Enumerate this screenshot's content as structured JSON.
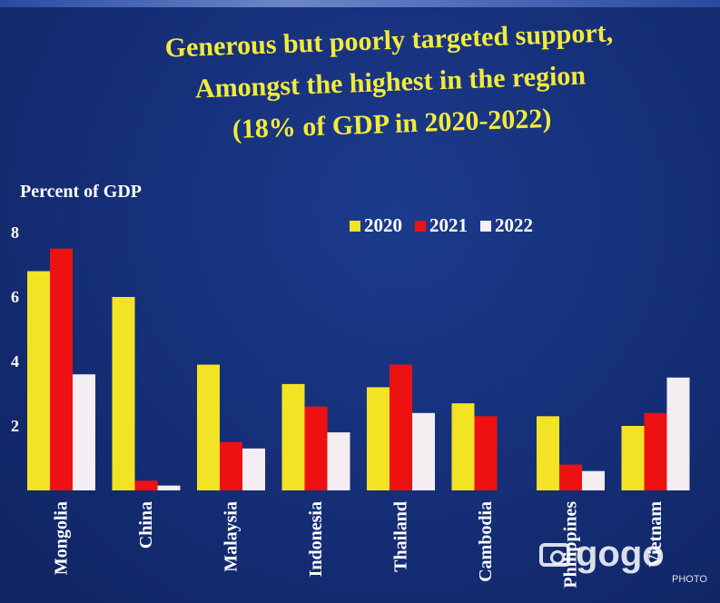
{
  "title_lines": [
    "Generous but poorly targeted support,",
    "Amongst the highest in the region",
    "(18% of GDP in 2020-2022)"
  ],
  "watermark": {
    "logo_text": "gogo",
    "sub_text": "PHOTO"
  },
  "chart_data": {
    "type": "bar",
    "title": "Generous but poorly targeted support, Amongst the highest in the region (18% of GDP in 2020-2022)",
    "ylabel": "Percent of GDP",
    "xlabel": "",
    "ylim": [
      0,
      8
    ],
    "yticks": [
      "8",
      "6",
      "4",
      "2"
    ],
    "categories": [
      "Mongolia",
      "China",
      "Malaysia",
      "Indonesia",
      "Thailand",
      "Cambodia",
      "Philippines",
      "Vietnam"
    ],
    "series": [
      {
        "name": "2020",
        "color": "#f2e424",
        "values": [
          6.8,
          6.0,
          3.9,
          3.3,
          3.2,
          2.7,
          2.3,
          2.0
        ]
      },
      {
        "name": "2021",
        "color": "#ee1111",
        "values": [
          7.5,
          0.3,
          1.5,
          2.6,
          3.9,
          2.3,
          0.8,
          2.4
        ]
      },
      {
        "name": "2022",
        "color": "#f4eef2",
        "values": [
          3.6,
          0.15,
          1.3,
          1.8,
          2.4,
          0.0,
          0.6,
          3.5
        ]
      }
    ],
    "legend_position": "top-right",
    "grid": false
  }
}
